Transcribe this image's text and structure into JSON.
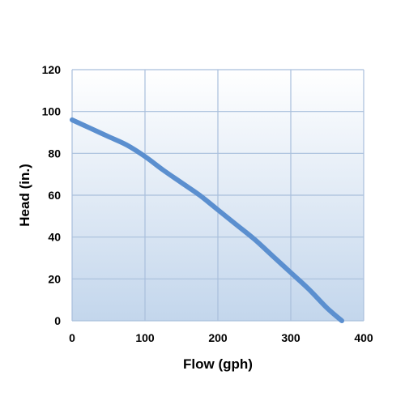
{
  "chart_data": {
    "type": "line",
    "title": "",
    "xlabel": "Flow (gph)",
    "ylabel": "Head (in.)",
    "xlim": [
      0,
      400
    ],
    "ylim": [
      0,
      120
    ],
    "x_ticks": [
      0,
      100,
      200,
      300,
      400
    ],
    "y_ticks": [
      0,
      20,
      40,
      60,
      80,
      100,
      120
    ],
    "grid": true,
    "legend": "none",
    "colors": {
      "line": "#5b8fcf",
      "grid": "#a9bfdc",
      "plot_bg_top": "#ffffff",
      "plot_bg_bottom": "#c3d6ec"
    },
    "series": [
      {
        "x": [
          0,
          25,
          50,
          75,
          100,
          125,
          150,
          175,
          200,
          225,
          250,
          275,
          300,
          325,
          350,
          370
        ],
        "y": [
          96,
          92,
          88,
          84,
          78.5,
          72,
          66,
          60,
          53,
          46,
          39,
          31,
          23,
          15,
          6,
          0
        ]
      }
    ]
  }
}
